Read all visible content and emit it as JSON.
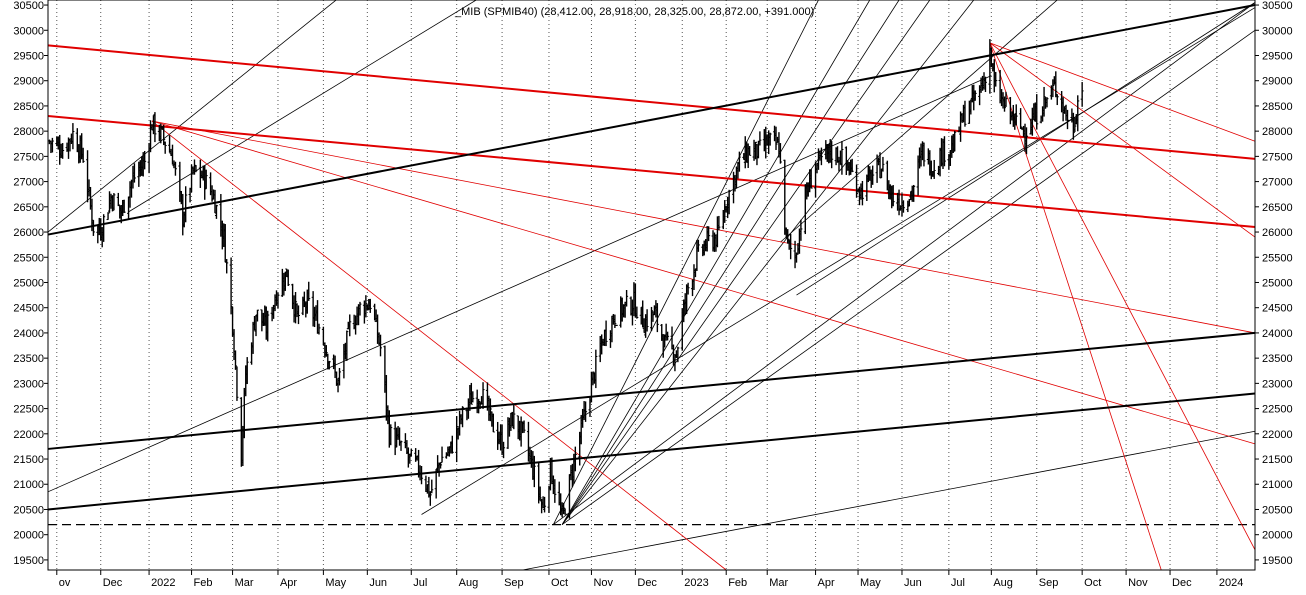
{
  "chart_data": {
    "type": "candlestick",
    "title": "_MIB (SPMIB40) (28,412.00, 28,918.00, 28,325.00, 28,872.00, +391.000)",
    "ylim": [
      19300,
      30600
    ],
    "y_ticks": [
      19500,
      20000,
      20500,
      21000,
      21500,
      22000,
      22500,
      23000,
      23500,
      24000,
      24500,
      25000,
      25500,
      26000,
      26500,
      27000,
      27500,
      28000,
      28500,
      29000,
      29500,
      30000,
      30500
    ],
    "x_range": [
      "2021-10-26",
      "2024-01-28"
    ],
    "x_ticks": [
      {
        "label": "ov",
        "date": "2021-11-01"
      },
      {
        "label": "Dec",
        "date": "2021-12-01"
      },
      {
        "label": "2022",
        "date": "2022-01-03"
      },
      {
        "label": "Feb",
        "date": "2022-02-01"
      },
      {
        "label": "Mar",
        "date": "2022-03-01"
      },
      {
        "label": "Apr",
        "date": "2022-04-01"
      },
      {
        "label": "May",
        "date": "2022-05-02"
      },
      {
        "label": "Jun",
        "date": "2022-06-01"
      },
      {
        "label": "Jul",
        "date": "2022-07-01"
      },
      {
        "label": "Aug",
        "date": "2022-08-01"
      },
      {
        "label": "Sep",
        "date": "2022-09-01"
      },
      {
        "label": "Oct",
        "date": "2022-10-03"
      },
      {
        "label": "Nov",
        "date": "2022-11-01"
      },
      {
        "label": "Dec",
        "date": "2022-12-01"
      },
      {
        "label": "2023",
        "date": "2023-01-02"
      },
      {
        "label": "Feb",
        "date": "2023-02-01"
      },
      {
        "label": "Mar",
        "date": "2023-03-01"
      },
      {
        "label": "Apr",
        "date": "2023-04-03"
      },
      {
        "label": "May",
        "date": "2023-05-02"
      },
      {
        "label": "Jun",
        "date": "2023-06-01"
      },
      {
        "label": "Jul",
        "date": "2023-07-03"
      },
      {
        "label": "Aug",
        "date": "2023-08-01"
      },
      {
        "label": "Sep",
        "date": "2023-09-01"
      },
      {
        "label": "Oct",
        "date": "2023-10-02"
      },
      {
        "label": "Nov",
        "date": "2023-11-01"
      },
      {
        "label": "Dec",
        "date": "2023-12-01"
      },
      {
        "label": "2024",
        "date": "2024-01-02"
      }
    ],
    "price_path": [
      [
        "2021-10-27",
        27800
      ],
      [
        "2021-11-05",
        27650
      ],
      [
        "2021-11-12",
        27950
      ],
      [
        "2021-11-19",
        27500
      ],
      [
        "2021-11-26",
        26100
      ],
      [
        "2021-12-01",
        26050
      ],
      [
        "2021-12-08",
        26700
      ],
      [
        "2021-12-15",
        26400
      ],
      [
        "2021-12-22",
        27000
      ],
      [
        "2021-12-31",
        27400
      ],
      [
        "2022-01-05",
        28150
      ],
      [
        "2022-01-12",
        27900
      ],
      [
        "2022-01-19",
        27500
      ],
      [
        "2022-01-26",
        26300
      ],
      [
        "2022-02-02",
        27200
      ],
      [
        "2022-02-09",
        27100
      ],
      [
        "2022-02-16",
        26700
      ],
      [
        "2022-02-23",
        25900
      ],
      [
        "2022-03-01",
        24200
      ],
      [
        "2022-03-07",
        21600
      ],
      [
        "2022-03-10",
        23200
      ],
      [
        "2022-03-17",
        24400
      ],
      [
        "2022-03-24",
        24100
      ],
      [
        "2022-03-31",
        24800
      ],
      [
        "2022-04-07",
        25200
      ],
      [
        "2022-04-14",
        24300
      ],
      [
        "2022-04-21",
        24600
      ],
      [
        "2022-04-28",
        24200
      ],
      [
        "2022-05-06",
        23500
      ],
      [
        "2022-05-12",
        23000
      ],
      [
        "2022-05-20",
        24100
      ],
      [
        "2022-05-27",
        24500
      ],
      [
        "2022-06-03",
        24600
      ],
      [
        "2022-06-10",
        23700
      ],
      [
        "2022-06-16",
        22000
      ],
      [
        "2022-06-23",
        21800
      ],
      [
        "2022-06-30",
        21500
      ],
      [
        "2022-07-07",
        21300
      ],
      [
        "2022-07-14",
        20800
      ],
      [
        "2022-07-21",
        21500
      ],
      [
        "2022-07-28",
        21700
      ],
      [
        "2022-08-04",
        22300
      ],
      [
        "2022-08-11",
        22700
      ],
      [
        "2022-08-18",
        22800
      ],
      [
        "2022-08-25",
        22200
      ],
      [
        "2022-09-01",
        21800
      ],
      [
        "2022-09-08",
        22300
      ],
      [
        "2022-09-15",
        22000
      ],
      [
        "2022-09-22",
        21300
      ],
      [
        "2022-09-29",
        20500
      ],
      [
        "2022-10-04",
        21300
      ],
      [
        "2022-10-12",
        20300
      ],
      [
        "2022-10-19",
        21300
      ],
      [
        "2022-10-26",
        22200
      ],
      [
        "2022-11-02",
        23100
      ],
      [
        "2022-11-09",
        23900
      ],
      [
        "2022-11-16",
        24300
      ],
      [
        "2022-11-23",
        24500
      ],
      [
        "2022-11-30",
        24600
      ],
      [
        "2022-12-07",
        24200
      ],
      [
        "2022-12-14",
        24400
      ],
      [
        "2022-12-21",
        23800
      ],
      [
        "2022-12-29",
        23600
      ],
      [
        "2023-01-05",
        24800
      ],
      [
        "2023-01-12",
        25500
      ],
      [
        "2023-01-19",
        25800
      ],
      [
        "2023-01-26",
        25900
      ],
      [
        "2023-02-02",
        26700
      ],
      [
        "2023-02-09",
        27300
      ],
      [
        "2023-02-16",
        27600
      ],
      [
        "2023-02-23",
        27600
      ],
      [
        "2023-03-02",
        27800
      ],
      [
        "2023-03-09",
        27700
      ],
      [
        "2023-03-14",
        25800
      ],
      [
        "2023-03-20",
        25500
      ],
      [
        "2023-03-27",
        26700
      ],
      [
        "2023-04-03",
        27300
      ],
      [
        "2023-04-13",
        27600
      ],
      [
        "2023-04-20",
        27500
      ],
      [
        "2023-04-27",
        27200
      ],
      [
        "2023-05-04",
        26800
      ],
      [
        "2023-05-11",
        27100
      ],
      [
        "2023-05-18",
        27300
      ],
      [
        "2023-05-25",
        26700
      ],
      [
        "2023-06-01",
        26600
      ],
      [
        "2023-06-08",
        26800
      ],
      [
        "2023-06-15",
        27600
      ],
      [
        "2023-06-22",
        27300
      ],
      [
        "2023-06-29",
        27600
      ],
      [
        "2023-07-06",
        27700
      ],
      [
        "2023-07-13",
        28300
      ],
      [
        "2023-07-20",
        28600
      ],
      [
        "2023-07-27",
        29000
      ],
      [
        "2023-07-31",
        29600
      ],
      [
        "2023-08-03",
        28900
      ],
      [
        "2023-08-10",
        28500
      ],
      [
        "2023-08-17",
        28200
      ],
      [
        "2023-08-24",
        28000
      ],
      [
        "2023-08-31",
        28300
      ],
      [
        "2023-09-07",
        28600
      ],
      [
        "2023-09-14",
        28900
      ],
      [
        "2023-09-20",
        28400
      ],
      [
        "2023-09-26",
        28100
      ],
      [
        "2023-09-29",
        28600
      ],
      [
        "2023-10-02",
        28872
      ]
    ],
    "horizontal_lines": [
      {
        "value": 20200,
        "style": "dashed"
      }
    ],
    "trendlines_black_thick": [
      [
        [
          "2021-10-26",
          25950
        ],
        [
          "2024-01-28",
          30500
        ]
      ],
      [
        [
          "2021-10-26",
          21700
        ],
        [
          "2024-01-28",
          24000
        ]
      ],
      [
        [
          "2021-10-26",
          20500
        ],
        [
          "2024-01-28",
          22800
        ]
      ]
    ],
    "trendlines_black_thin": [
      [
        [
          "2021-10-26",
          26000
        ],
        [
          "2022-05-15",
          30700
        ]
      ],
      [
        [
          "2021-12-20",
          26400
        ],
        [
          "2022-08-20",
          30700
        ]
      ],
      [
        [
          "2021-10-26",
          20850
        ],
        [
          "2023-08-01",
          29100
        ]
      ],
      [
        [
          "2022-07-08",
          20400
        ],
        [
          "2024-01-28",
          30450
        ]
      ],
      [
        [
          "2022-10-06",
          20200
        ],
        [
          "2024-01-28",
          30550
        ]
      ],
      [
        [
          "2022-10-12",
          20200
        ],
        [
          "2024-01-28",
          30000
        ]
      ],
      [
        [
          "2022-09-15",
          19300
        ],
        [
          "2024-01-28",
          22050
        ]
      ],
      [
        [
          "2023-03-21",
          24750
        ],
        [
          "2024-01-28",
          30550
        ]
      ],
      [
        [
          "2022-10-06",
          20200
        ],
        [
          "2023-04-05",
          30600
        ]
      ],
      [
        [
          "2022-10-12",
          20200
        ],
        [
          "2023-05-10",
          30600
        ]
      ],
      [
        [
          "2022-10-12",
          20200
        ],
        [
          "2023-05-30",
          30600
        ]
      ],
      [
        [
          "2022-10-12",
          20200
        ],
        [
          "2023-06-20",
          30600
        ]
      ],
      [
        [
          "2022-10-12",
          20200
        ],
        [
          "2023-07-20",
          30600
        ]
      ],
      [
        [
          "2023-03-10",
          25800
        ],
        [
          "2023-09-15",
          30600
        ]
      ]
    ],
    "trendlines_red_thick": [
      [
        [
          "2021-10-26",
          29700
        ],
        [
          "2024-01-28",
          27450
        ]
      ],
      [
        [
          "2021-10-26",
          28300
        ],
        [
          "2024-01-28",
          26100
        ]
      ]
    ],
    "trendlines_red_thin": [
      [
        [
          "2022-01-05",
          28200
        ],
        [
          "2024-01-28",
          24000
        ]
      ],
      [
        [
          "2022-01-05",
          28200
        ],
        [
          "2024-01-28",
          21800
        ]
      ],
      [
        [
          "2022-01-05",
          28200
        ],
        [
          "2023-02-01",
          19300
        ]
      ],
      [
        [
          "2023-07-31",
          29750
        ],
        [
          "2024-01-28",
          27800
        ]
      ],
      [
        [
          "2023-07-31",
          29750
        ],
        [
          "2024-01-28",
          25900
        ]
      ],
      [
        [
          "2023-07-31",
          29750
        ],
        [
          "2024-01-28",
          19700
        ]
      ],
      [
        [
          "2023-07-31",
          29750
        ],
        [
          "2023-11-25",
          19300
        ]
      ]
    ]
  }
}
